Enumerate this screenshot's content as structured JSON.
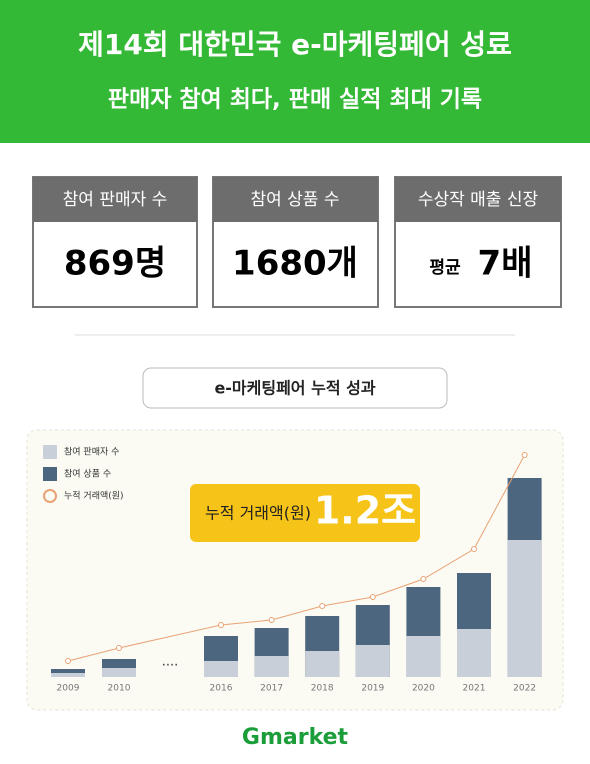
{
  "header": {
    "title": "제14회 대한민국 e-마케팅페어 성료",
    "subtitle": "판매자 참여 최다, 판매 실적 최대 기록"
  },
  "stats": [
    {
      "label": "참여 판매자 수",
      "value": "869명"
    },
    {
      "label": "참여 상품 수",
      "value": "1680개"
    },
    {
      "label": "수상작 매출 신장",
      "prefix": "평균",
      "value": "7배"
    }
  ],
  "section_title": "e-마케팅페어 누적 성과",
  "badge": {
    "label": "누적 거래액(원)",
    "value": "1.2조"
  },
  "chart_data": {
    "type": "bar-line",
    "categories": [
      "2009",
      "2010",
      "2016",
      "2017",
      "2018",
      "2019",
      "2020",
      "2021",
      "2022"
    ],
    "gap_label": "....",
    "series": [
      {
        "name": "참여 판매자 수",
        "color": "#c9cfd9",
        "values": [
          4,
          9,
          16,
          21,
          26,
          32,
          41,
          48,
          137
        ]
      },
      {
        "name": "참여 상품 수",
        "color": "#4d6680",
        "values": [
          8,
          18,
          41,
          49,
          61,
          72,
          90,
          104,
          199
        ]
      },
      {
        "name": "누적 거래액(원)",
        "color": "#e9a274",
        "values": [
          16,
          29,
          52,
          57,
          71,
          80,
          98,
          128,
          222
        ]
      }
    ]
  },
  "footer": {
    "logo": "Gmarket"
  }
}
